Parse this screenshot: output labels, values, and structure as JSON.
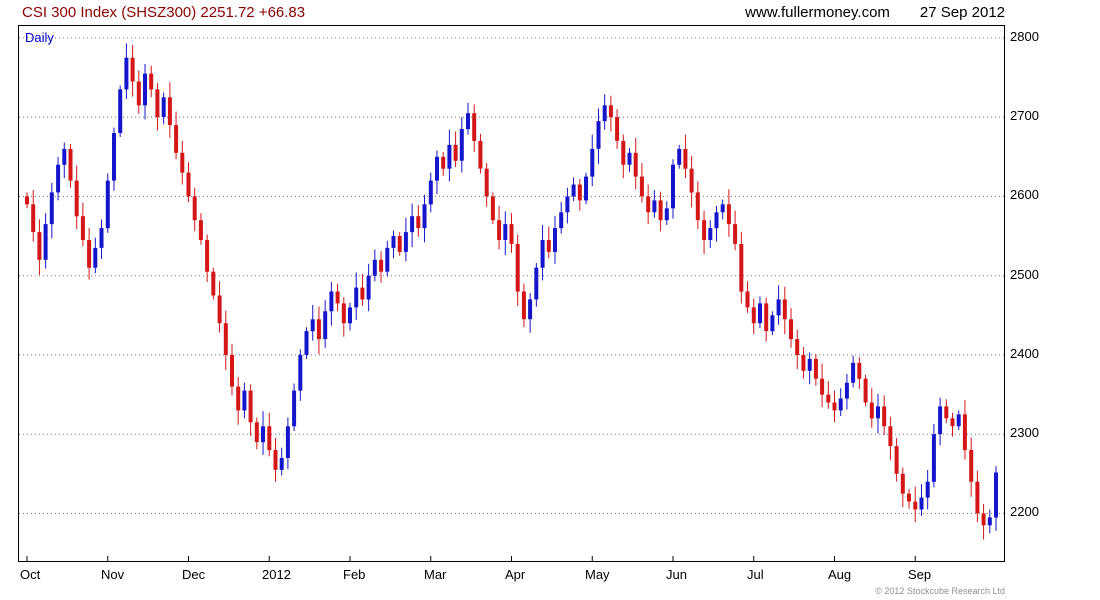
{
  "header": {
    "title": "CSI 300 Index (SHSZ300) 2251.72 +66.83",
    "site": "www.fullermoney.com",
    "date": "27 Sep 2012"
  },
  "chart": {
    "frequency_label": "Daily",
    "copyright": "© 2012 Stockcube Research Ltd"
  },
  "colors": {
    "up": "#1515cc",
    "down": "#d41616",
    "grid": "#707070",
    "title": "#8b0000",
    "daily_label": "#0000cc"
  },
  "chart_data": {
    "type": "candlestick",
    "title": "CSI 300 Index (SHSZ300)",
    "frequency": "Daily",
    "last_close": 2251.72,
    "change": 66.83,
    "x_tick_labels": [
      "Oct",
      "Nov",
      "Dec",
      "2012",
      "Feb",
      "Mar",
      "Apr",
      "May",
      "Jun",
      "Jul",
      "Aug",
      "Sep"
    ],
    "y_ticks": [
      2200,
      2300,
      2400,
      2500,
      2600,
      2700,
      2800
    ],
    "ylim": [
      2140,
      2815
    ],
    "points_per_month": 13,
    "first_open": 2600,
    "closes": [
      2590,
      2555,
      2520,
      2565,
      2605,
      2640,
      2660,
      2620,
      2575,
      2545,
      2510,
      2535,
      2560,
      2620,
      2680,
      2735,
      2775,
      2745,
      2715,
      2755,
      2735,
      2700,
      2725,
      2690,
      2655,
      2630,
      2600,
      2570,
      2545,
      2505,
      2475,
      2440,
      2400,
      2360,
      2330,
      2355,
      2315,
      2290,
      2310,
      2280,
      2255,
      2270,
      2310,
      2355,
      2400,
      2430,
      2445,
      2420,
      2455,
      2480,
      2465,
      2440,
      2460,
      2485,
      2470,
      2500,
      2520,
      2505,
      2535,
      2550,
      2530,
      2555,
      2575,
      2560,
      2590,
      2620,
      2650,
      2635,
      2665,
      2645,
      2685,
      2705,
      2670,
      2635,
      2600,
      2570,
      2545,
      2565,
      2540,
      2480,
      2445,
      2470,
      2510,
      2545,
      2530,
      2560,
      2580,
      2600,
      2615,
      2595,
      2625,
      2660,
      2695,
      2715,
      2700,
      2670,
      2640,
      2655,
      2625,
      2600,
      2580,
      2595,
      2570,
      2585,
      2640,
      2660,
      2635,
      2605,
      2570,
      2545,
      2560,
      2580,
      2590,
      2565,
      2540,
      2480,
      2460,
      2440,
      2465,
      2430,
      2450,
      2470,
      2445,
      2420,
      2400,
      2380,
      2395,
      2370,
      2350,
      2340,
      2330,
      2345,
      2365,
      2390,
      2370,
      2340,
      2320,
      2335,
      2310,
      2285,
      2250,
      2225,
      2215,
      2205,
      2220,
      2240,
      2300,
      2335,
      2320,
      2310,
      2325,
      2280,
      2240,
      2200,
      2185,
      2195,
      2251.72
    ]
  }
}
